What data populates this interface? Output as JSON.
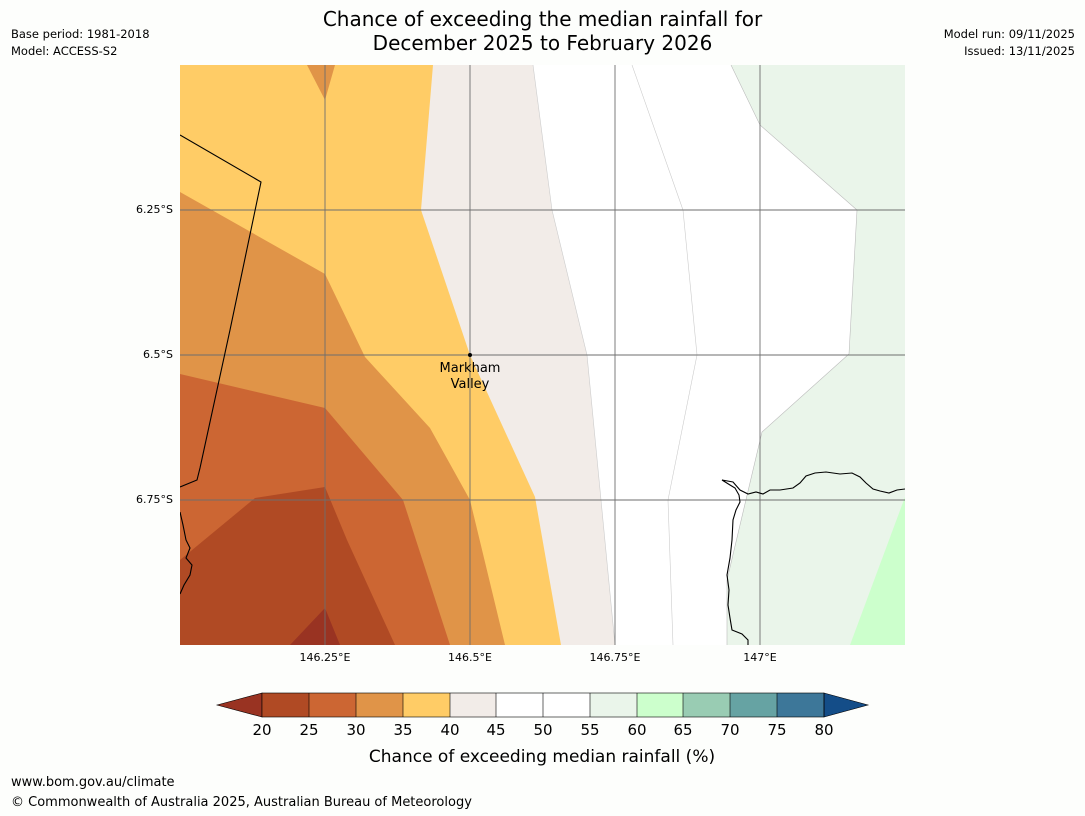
{
  "header": {
    "title_line1": "Chance of exceeding the median rainfall for",
    "title_line2": "December 2025 to February 2026",
    "base_period": "Base period: 1981-2018",
    "model": "Model: ACCESS-S2",
    "model_run": "Model run: 09/11/2025",
    "issued": "Issued: 13/11/2025"
  },
  "map": {
    "lat_labels": [
      "6.25°S",
      "6.5°S",
      "6.75°S"
    ],
    "lon_labels": [
      "146.25°E",
      "146.5°E",
      "146.75°E",
      "147°E"
    ],
    "place": {
      "name_line1": "Markham",
      "name_line2": "Valley"
    }
  },
  "colorbar": {
    "label": "Chance of exceeding median rainfall (%)",
    "ticks": [
      "20",
      "25",
      "30",
      "35",
      "40",
      "45",
      "50",
      "55",
      "60",
      "65",
      "70",
      "75",
      "80"
    ],
    "colors": {
      "below_20": "#993322",
      "c20_25": "#b04a24",
      "c25_30": "#cc6633",
      "c30_35": "#e09448",
      "c35_40": "#ffcc66",
      "c40_45": "#f2ece8",
      "c45_50": "#ffffff",
      "c50_55": "#ffffff",
      "c55_60": "#eaf5ea",
      "c60_65": "#ccffcc",
      "c65_70": "#99ccb3",
      "c70_75": "#66a3a3",
      "c75_80": "#3d7799",
      "above_80": "#144d88"
    }
  },
  "footer": {
    "url": "www.bom.gov.au/climate",
    "copyright": "© Commonwealth of Australia 2025, Australian Bureau of Meteorology"
  }
}
